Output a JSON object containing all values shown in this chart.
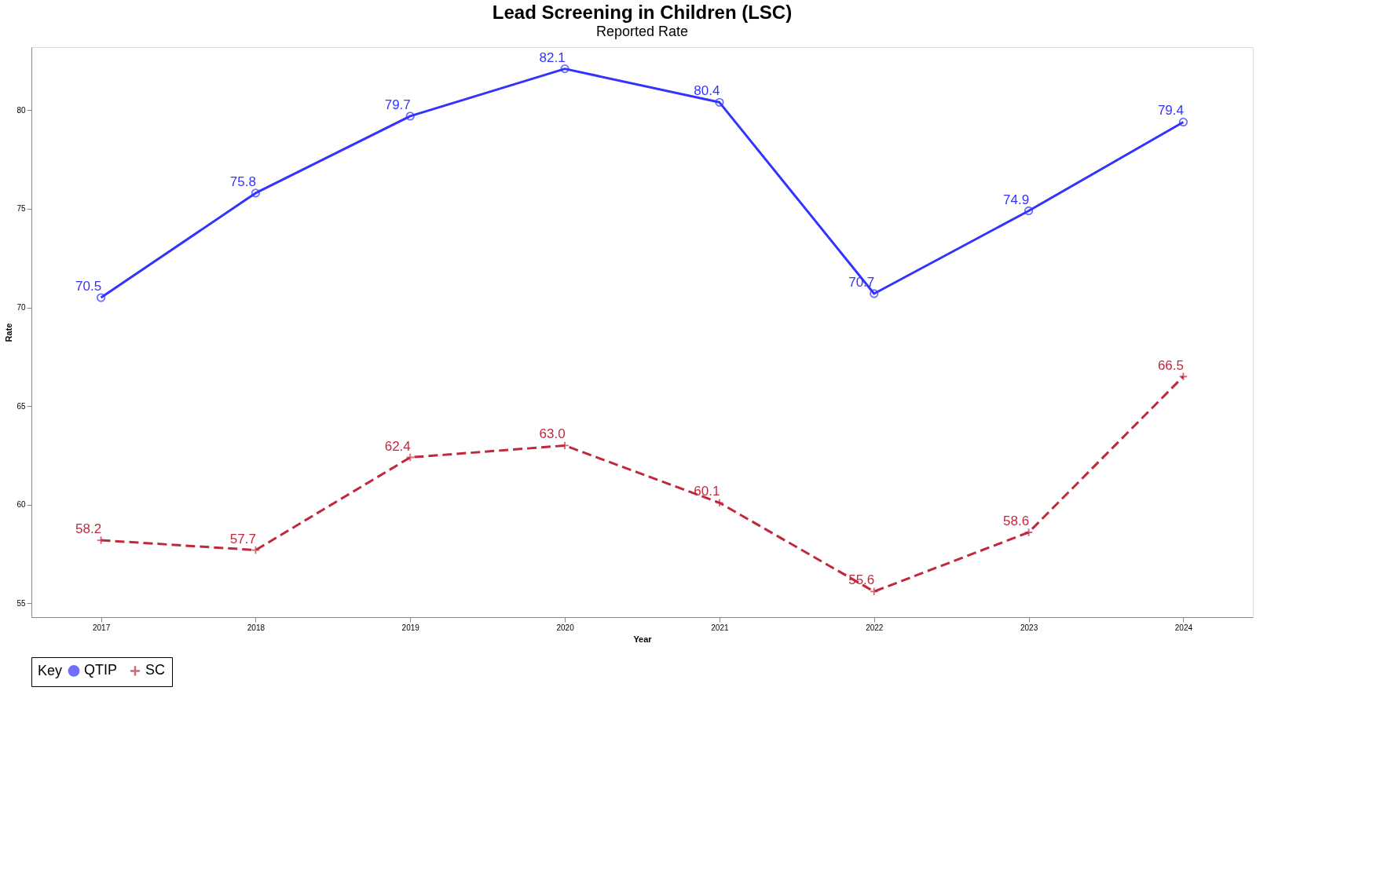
{
  "chart_data": {
    "type": "line",
    "title": "Lead Screening in Children (LSC)",
    "subtitle": "Reported Rate",
    "xlabel": "Year",
    "ylabel": "Rate",
    "legend_title": "Key",
    "categories": [
      "2017",
      "2018",
      "2019",
      "2020",
      "2021",
      "2022",
      "2023",
      "2024"
    ],
    "series": [
      {
        "name": "QTIP",
        "color": "#3333ff",
        "marker": "circle",
        "line_style": "solid",
        "values": [
          70.5,
          75.8,
          79.7,
          82.1,
          80.4,
          70.7,
          74.9,
          79.4
        ],
        "value_labels": [
          "70.5",
          "75.8",
          "79.7",
          "82.1",
          "80.4",
          "70.7",
          "74.9",
          "79.4"
        ]
      },
      {
        "name": "SC",
        "color": "#c0283c",
        "marker": "cross",
        "line_style": "dashed",
        "values": [
          58.2,
          57.7,
          62.4,
          63.0,
          60.1,
          55.6,
          58.6,
          66.5
        ],
        "value_labels": [
          "58.2",
          "57.7",
          "62.4",
          "63.0",
          "60.1",
          "55.6",
          "58.6",
          "66.5"
        ]
      }
    ],
    "ylim": [
      54.3,
      83.2
    ],
    "yticks": [
      55,
      60,
      65,
      70,
      75,
      80
    ],
    "grid": false,
    "legend": "bottom"
  }
}
